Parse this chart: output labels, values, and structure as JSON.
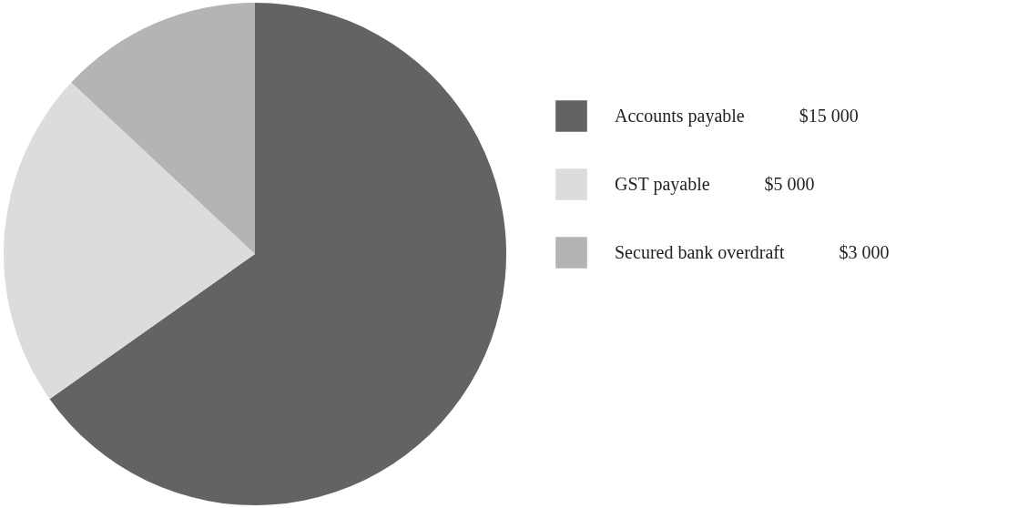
{
  "chart_data": {
    "type": "pie",
    "categories": [
      "Accounts payable",
      "GST payable",
      "Secured bank overdraft"
    ],
    "values": [
      15000,
      5000,
      3000
    ],
    "colors": [
      "#646262",
      "#dcdcdc",
      "#b4b4b4"
    ],
    "value_labels": [
      "$15 000",
      "$5 000",
      "$3 000"
    ],
    "legend": "right"
  }
}
